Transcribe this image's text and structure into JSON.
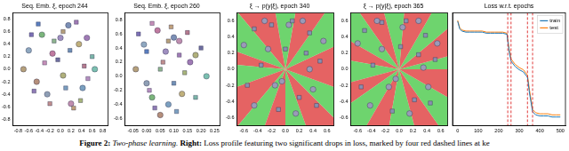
{
  "chart_data": [
    {
      "type": "scatter",
      "title": "Seq. Emb. ξ, epoch 244",
      "xlim": [
        -0.9,
        0.9
      ],
      "ylim": [
        -0.9,
        0.9
      ],
      "xticks": [
        -0.8,
        -0.6,
        -0.4,
        -0.2,
        {
          "value": 0,
          "label": "0.0"
        },
        0.2,
        0.4,
        0.6,
        0.8
      ],
      "yticks": [
        -0.8,
        -0.6,
        -0.4,
        -0.2,
        {
          "value": 0,
          "label": "0.0"
        },
        0.2,
        0.4,
        0.6,
        0.8
      ],
      "grid": false,
      "series": [
        {
          "marker": "square",
          "x": [
            -0.55,
            -0.42,
            -0.3,
            -0.12,
            0.05,
            0.18,
            0.3,
            0.45,
            0.6,
            -0.5,
            -0.2,
            0.1,
            0.38,
            0.52,
            -0.05,
            0.25
          ],
          "y": [
            0.55,
            0.72,
            0.1,
            0.45,
            0.6,
            0.3,
            0.75,
            0.05,
            0.2,
            -0.35,
            -0.55,
            -0.3,
            -0.5,
            -0.15,
            0.15,
            -0.62
          ],
          "colors": [
            "#7b6fb5",
            "#5a7fc0",
            "#c58fb8",
            "#8fb58f",
            "#b59f7b",
            "#6f8fb5",
            "#a07bb5",
            "#b57b8f",
            "#7bb5a8",
            "#8f7bb5",
            "#c08f8f",
            "#7b9fc0",
            "#a8b57b",
            "#b58fc0",
            "#6f6fa0",
            "#c0a07b"
          ]
        },
        {
          "marker": "circle",
          "x": [
            -0.7,
            -0.6,
            -0.35,
            -0.15,
            0.0,
            0.15,
            0.35,
            0.5,
            0.65,
            -0.45,
            -0.25,
            0.2,
            0.42,
            0.05
          ],
          "y": [
            0.0,
            0.3,
            0.55,
            0.25,
            0.5,
            0.7,
            0.4,
            0.5,
            0.0,
            -0.2,
            -0.4,
            -0.55,
            -0.3,
            -0.1
          ],
          "colors": [
            "#b5a07b",
            "#8fa8c0",
            "#7bb57b",
            "#c07ba0",
            "#9f8fc0",
            "#7b8fb5",
            "#c0b07b",
            "#a07bb5",
            "#7bc0b0",
            "#b58f7b",
            "#8f9fb5",
            "#c08fb0",
            "#7ba0c0",
            "#b0b07b"
          ]
        }
      ]
    },
    {
      "type": "scatter",
      "title": "Seq. Emb. ξ, epoch 260",
      "xlim": [
        -0.08,
        0.27
      ],
      "ylim": [
        -0.7,
        0.9
      ],
      "xticks": [
        -0.05,
        {
          "value": 0,
          "label": "0.00"
        },
        0.05,
        {
          "value": 0.1,
          "label": "0.10"
        },
        0.15,
        {
          "value": 0.2,
          "label": "0.20"
        },
        0.25
      ],
      "yticks": [
        -0.6,
        -0.4,
        -0.2,
        {
          "value": 0,
          "label": "0.0"
        },
        0.2,
        0.4,
        0.6,
        0.8
      ],
      "grid": false,
      "series": [
        {
          "marker": "square",
          "x": [
            -0.03,
            0.0,
            0.02,
            0.05,
            0.08,
            0.1,
            0.12,
            0.15,
            0.18,
            0.03,
            0.06,
            0.11,
            0.14,
            0.01,
            0.2,
            0.09
          ],
          "y": [
            0.6,
            0.35,
            0.75,
            0.1,
            0.5,
            -0.1,
            0.3,
            0.62,
            -0.3,
            -0.45,
            0.2,
            -0.5,
            0.05,
            -0.2,
            0.4,
            0.7
          ],
          "colors": [
            "#7b6fb5",
            "#5a7fc0",
            "#c58fb8",
            "#8fb58f",
            "#b59f7b",
            "#6f8fb5",
            "#a07bb5",
            "#b57b8f",
            "#7bb5a8",
            "#8f7bb5",
            "#c08f8f",
            "#7b9fc0",
            "#a8b57b",
            "#b58fc0",
            "#6f6fa0",
            "#c0a07b"
          ]
        },
        {
          "marker": "circle",
          "x": [
            -0.04,
            -0.01,
            0.02,
            0.04,
            0.07,
            0.1,
            0.13,
            0.16,
            0.22,
            0.05,
            0.0,
            0.12,
            0.08,
            0.18
          ],
          "y": [
            0.1,
            0.45,
            -0.3,
            0.65,
            0.35,
            0.55,
            -0.25,
            0.2,
            0.0,
            -0.55,
            -0.1,
            0.5,
            -0.4,
            0.3
          ],
          "colors": [
            "#b5a07b",
            "#8fa8c0",
            "#7bb57b",
            "#c07ba0",
            "#9f8fc0",
            "#7b8fb5",
            "#c0b07b",
            "#a07bb5",
            "#7bc0b0",
            "#b58f7b",
            "#8f9fb5",
            "#c08fb0",
            "#7ba0c0",
            "#b0b07b"
          ]
        }
      ]
    },
    {
      "type": "scatter",
      "title": "ξ → p(y|ξ), epoch 340",
      "xlim": [
        -0.7,
        0.7
      ],
      "ylim": [
        -0.7,
        0.7
      ],
      "xticks": [
        -0.6,
        -0.4,
        -0.2,
        {
          "value": 0,
          "label": "0.0"
        },
        0.2,
        0.4,
        0.6
      ],
      "yticks": [
        -0.6,
        -0.4,
        -0.2,
        {
          "value": 0,
          "label": "0.0"
        },
        0.2,
        0.4,
        0.6
      ],
      "grid": false,
      "sectors": {
        "center": [
          0.0,
          0.0
        ],
        "angles": [
          0,
          25,
          55,
          80,
          100,
          130,
          160,
          175,
          200,
          230,
          250,
          270,
          290,
          315,
          340,
          360
        ],
        "colors": [
          "#e04848",
          "#55cc55",
          "#e04848",
          "#55cc55",
          "#e04848",
          "#55cc55",
          "#e04848",
          "#55cc55",
          "#e04848",
          "#55cc55",
          "#e04848",
          "#55cc55",
          "#e04848",
          "#55cc55",
          "#e04848"
        ]
      },
      "series": [
        {
          "marker": "square",
          "color": "#8a8fb0",
          "x": [
            -0.45,
            -0.2,
            0.1,
            0.35,
            0.5,
            -0.55,
            0.2,
            -0.1,
            0.45,
            0.0,
            -0.35,
            0.3
          ],
          "y": [
            0.5,
            0.55,
            0.6,
            0.45,
            0.1,
            -0.2,
            -0.35,
            -0.5,
            -0.45,
            0.25,
            0.05,
            0.2
          ]
        },
        {
          "marker": "circle",
          "color": "#9a9ab8",
          "x": [
            -0.6,
            -0.3,
            0.05,
            0.25,
            0.55,
            -0.45,
            -0.15,
            0.15,
            0.4,
            -0.05,
            0.35,
            -0.25
          ],
          "y": [
            0.3,
            0.6,
            0.55,
            0.6,
            0.35,
            -0.45,
            -0.2,
            -0.55,
            -0.25,
            -0.15,
            0.0,
            0.25
          ]
        }
      ]
    },
    {
      "type": "scatter",
      "title": "ξ → p(y|ξ), epoch 365",
      "xlim": [
        -0.7,
        0.7
      ],
      "ylim": [
        -0.7,
        0.7
      ],
      "xticks": [
        -0.6,
        -0.4,
        -0.2,
        {
          "value": 0,
          "label": "0.0"
        },
        0.2,
        0.4,
        0.6
      ],
      "yticks": [
        -0.6,
        -0.4,
        -0.2,
        {
          "value": 0,
          "label": "0.0"
        },
        0.2,
        0.4,
        0.6
      ],
      "grid": false,
      "sectors": {
        "center": [
          0.0,
          0.0
        ],
        "angles": [
          0,
          15,
          40,
          60,
          85,
          105,
          125,
          150,
          170,
          195,
          215,
          240,
          260,
          285,
          305,
          330,
          360
        ],
        "colors": [
          "#55cc55",
          "#e04848",
          "#55cc55",
          "#e04848",
          "#55cc55",
          "#e04848",
          "#55cc55",
          "#e04848",
          "#55cc55",
          "#e04848",
          "#55cc55",
          "#e04848",
          "#55cc55",
          "#e04848",
          "#55cc55",
          "#e04848"
        ]
      },
      "series": [
        {
          "marker": "square",
          "color": "#8a8fb0",
          "x": [
            -0.5,
            -0.25,
            0.1,
            0.38,
            0.52,
            -0.55,
            0.22,
            -0.1,
            0.45,
            0.02,
            -0.38,
            0.28
          ],
          "y": [
            0.48,
            0.58,
            0.6,
            0.42,
            0.12,
            -0.22,
            -0.38,
            -0.52,
            -0.42,
            0.28,
            0.05,
            0.18
          ]
        },
        {
          "marker": "circle",
          "color": "#9a9ab8",
          "x": [
            -0.6,
            -0.32,
            0.05,
            0.28,
            0.55,
            -0.42,
            -0.15,
            0.15,
            0.42,
            -0.05,
            0.35,
            -0.25
          ],
          "y": [
            0.32,
            0.6,
            0.52,
            0.6,
            0.32,
            -0.45,
            -0.22,
            -0.55,
            -0.22,
            -0.12,
            0.02,
            0.25
          ]
        }
      ]
    },
    {
      "type": "line",
      "title": "Loss w.r.t. epochs",
      "xlim": [
        -25,
        525
      ],
      "ylim": [
        0,
        1.05
      ],
      "xticks": [
        0,
        100,
        200,
        300,
        400,
        500
      ],
      "tick_labels": "x",
      "grid": false,
      "legend": "upper right",
      "vlines": {
        "x": [
          244,
          260,
          340,
          365
        ],
        "color": "#dd2222",
        "line_style": "dashed"
      },
      "x": [
        0,
        10,
        20,
        40,
        60,
        80,
        100,
        120,
        140,
        160,
        180,
        200,
        220,
        240,
        250,
        260,
        280,
        300,
        320,
        340,
        350,
        365,
        380,
        400,
        420,
        440,
        460,
        480,
        500
      ],
      "series": [
        {
          "name": "train",
          "color": "#1f77b4",
          "values": [
            0.97,
            0.9,
            0.88,
            0.87,
            0.87,
            0.87,
            0.87,
            0.87,
            0.86,
            0.86,
            0.86,
            0.86,
            0.86,
            0.85,
            0.7,
            0.6,
            0.55,
            0.52,
            0.5,
            0.45,
            0.3,
            0.13,
            0.1,
            0.09,
            0.09,
            0.09,
            0.08,
            0.08,
            0.08
          ]
        },
        {
          "name": "test",
          "color": "#ff7f0e",
          "values": [
            0.98,
            0.91,
            0.89,
            0.88,
            0.88,
            0.88,
            0.88,
            0.88,
            0.87,
            0.87,
            0.87,
            0.87,
            0.87,
            0.86,
            0.72,
            0.62,
            0.57,
            0.54,
            0.52,
            0.47,
            0.33,
            0.15,
            0.12,
            0.11,
            0.11,
            0.11,
            0.1,
            0.1,
            0.1
          ]
        }
      ]
    }
  ],
  "caption": [
    {
      "text": "Figure 2:",
      "style": "bold"
    },
    {
      "text": " Two-phase learning.",
      "style": "italic"
    },
    {
      "text": " Right:",
      "style": "bold"
    },
    {
      "text": " Loss profile featuring two significant drops in loss, marked by four red dashed lines at ke",
      "style": "normal"
    }
  ]
}
